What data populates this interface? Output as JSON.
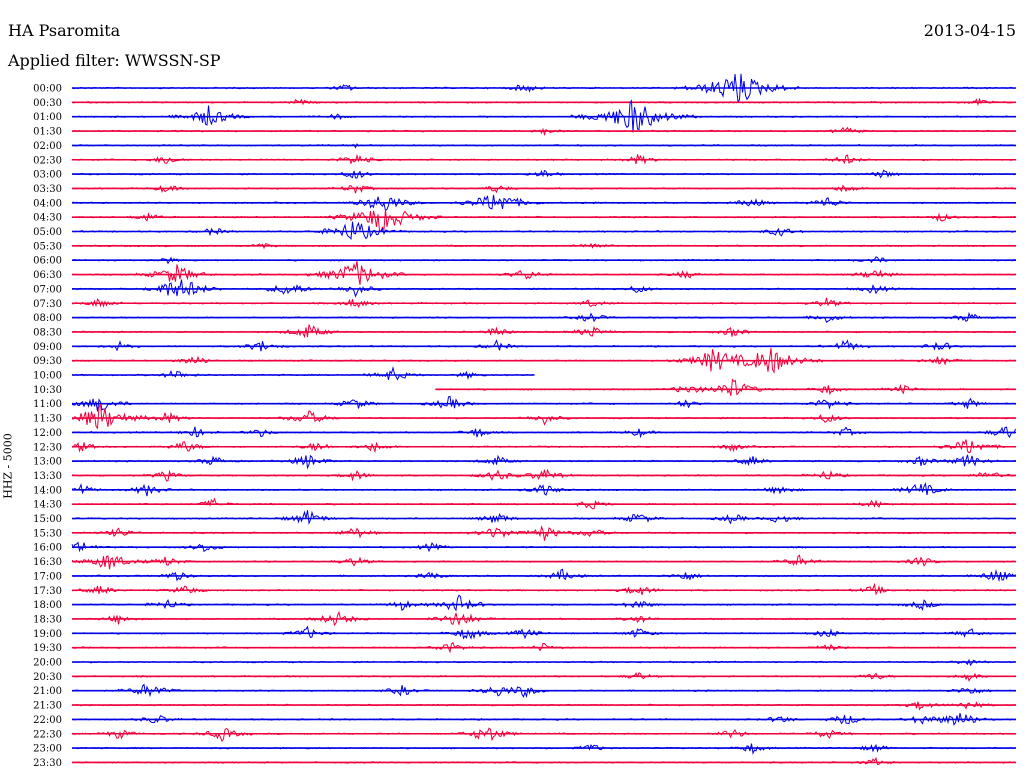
{
  "header": {
    "station": "HA Psaromita",
    "date": "2013-04-15",
    "filter": "Applied filter: WWSSN-SP"
  },
  "chart_data": {
    "type": "line",
    "title": "HA Psaromita",
    "subtitle": "Applied filter: WWSSN-SP",
    "ylabel": "HHZ - 5000",
    "colors": [
      "#0000e6",
      "#f0003c"
    ],
    "rows": [
      {
        "label": "00:00",
        "events": [
          [
            0.29,
            0.22
          ],
          [
            0.48,
            0.28
          ],
          [
            0.705,
            1.0
          ]
        ]
      },
      {
        "label": "00:30",
        "events": [
          [
            0.24,
            0.18
          ],
          [
            0.96,
            0.22
          ]
        ]
      },
      {
        "label": "01:00",
        "events": [
          [
            0.145,
            0.6
          ],
          [
            0.595,
            1.0
          ],
          [
            0.28,
            0.18
          ]
        ]
      },
      {
        "label": "01:30",
        "events": [
          [
            0.5,
            0.2
          ],
          [
            0.82,
            0.25
          ]
        ]
      },
      {
        "label": "02:00",
        "events": [
          [
            0.3,
            0.12
          ]
        ]
      },
      {
        "label": "02:30",
        "events": [
          [
            0.1,
            0.3
          ],
          [
            0.3,
            0.35
          ],
          [
            0.6,
            0.3
          ],
          [
            0.82,
            0.3
          ]
        ]
      },
      {
        "label": "03:00",
        "events": [
          [
            0.3,
            0.3
          ],
          [
            0.5,
            0.25
          ],
          [
            0.86,
            0.25
          ]
        ]
      },
      {
        "label": "03:30",
        "events": [
          [
            0.1,
            0.25
          ],
          [
            0.3,
            0.3
          ],
          [
            0.45,
            0.25
          ],
          [
            0.82,
            0.25
          ]
        ]
      },
      {
        "label": "04:00",
        "events": [
          [
            0.33,
            0.6
          ],
          [
            0.45,
            0.7
          ],
          [
            0.72,
            0.3
          ],
          [
            0.8,
            0.35
          ]
        ]
      },
      {
        "label": "04:30",
        "events": [
          [
            0.33,
            0.9
          ],
          [
            0.08,
            0.25
          ],
          [
            0.92,
            0.25
          ]
        ]
      },
      {
        "label": "05:00",
        "events": [
          [
            0.3,
            0.7
          ],
          [
            0.15,
            0.25
          ],
          [
            0.75,
            0.3
          ]
        ]
      },
      {
        "label": "05:30",
        "events": [
          [
            0.55,
            0.25
          ],
          [
            0.2,
            0.2
          ]
        ]
      },
      {
        "label": "06:00",
        "events": [
          [
            0.1,
            0.2
          ],
          [
            0.85,
            0.25
          ]
        ]
      },
      {
        "label": "06:30",
        "events": [
          [
            0.11,
            0.6
          ],
          [
            0.3,
            0.8
          ],
          [
            0.48,
            0.35
          ],
          [
            0.65,
            0.25
          ],
          [
            0.85,
            0.35
          ]
        ]
      },
      {
        "label": "07:00",
        "events": [
          [
            0.1,
            0.3
          ],
          [
            0.12,
            0.6
          ],
          [
            0.23,
            0.45
          ],
          [
            0.3,
            0.4
          ],
          [
            0.6,
            0.25
          ],
          [
            0.85,
            0.3
          ]
        ]
      },
      {
        "label": "07:30",
        "events": [
          [
            0.03,
            0.3
          ],
          [
            0.3,
            0.3
          ],
          [
            0.55,
            0.25
          ],
          [
            0.8,
            0.3
          ]
        ]
      },
      {
        "label": "08:00",
        "events": [
          [
            0.55,
            0.3
          ],
          [
            0.8,
            0.3
          ],
          [
            0.95,
            0.3
          ]
        ]
      },
      {
        "label": "08:30",
        "events": [
          [
            0.25,
            0.45
          ],
          [
            0.45,
            0.3
          ],
          [
            0.55,
            0.35
          ],
          [
            0.7,
            0.3
          ]
        ]
      },
      {
        "label": "09:00",
        "events": [
          [
            0.05,
            0.25
          ],
          [
            0.2,
            0.35
          ],
          [
            0.45,
            0.3
          ],
          [
            0.82,
            0.35
          ],
          [
            0.92,
            0.3
          ]
        ]
      },
      {
        "label": "09:30",
        "events": [
          [
            0.13,
            0.3
          ],
          [
            0.68,
            0.7
          ],
          [
            0.74,
            0.8
          ],
          [
            0.92,
            0.3
          ]
        ]
      },
      {
        "label": "10:00",
        "events": [
          [
            0.11,
            0.3
          ],
          [
            0.34,
            0.4
          ],
          [
            0.42,
            0.2
          ]
        ],
        "end": 0.49
      },
      {
        "label": "10:30",
        "start": 0.385,
        "events": [
          [
            0.65,
            0.3
          ],
          [
            0.7,
            0.6
          ],
          [
            0.8,
            0.3
          ],
          [
            0.88,
            0.25
          ]
        ]
      },
      {
        "label": "11:00",
        "events": [
          [
            0.03,
            0.5
          ],
          [
            0.3,
            0.35
          ],
          [
            0.4,
            0.4
          ],
          [
            0.65,
            0.25
          ],
          [
            0.8,
            0.35
          ],
          [
            0.95,
            0.3
          ]
        ]
      },
      {
        "label": "11:30",
        "events": [
          [
            0.03,
            0.8
          ],
          [
            0.1,
            0.35
          ],
          [
            0.25,
            0.45
          ],
          [
            0.5,
            0.35
          ],
          [
            0.8,
            0.3
          ]
        ]
      },
      {
        "label": "12:00",
        "events": [
          [
            0.13,
            0.3
          ],
          [
            0.2,
            0.25
          ],
          [
            0.43,
            0.3
          ],
          [
            0.6,
            0.25
          ],
          [
            0.82,
            0.25
          ],
          [
            0.99,
            0.4
          ]
        ]
      },
      {
        "label": "12:30",
        "events": [
          [
            0.01,
            0.3
          ],
          [
            0.12,
            0.35
          ],
          [
            0.26,
            0.3
          ],
          [
            0.32,
            0.3
          ],
          [
            0.7,
            0.25
          ],
          [
            0.95,
            0.5
          ]
        ]
      },
      {
        "label": "13:00",
        "events": [
          [
            0.15,
            0.3
          ],
          [
            0.25,
            0.4
          ],
          [
            0.45,
            0.3
          ],
          [
            0.72,
            0.3
          ],
          [
            0.9,
            0.3
          ],
          [
            0.95,
            0.4
          ]
        ]
      },
      {
        "label": "13:30",
        "events": [
          [
            0.1,
            0.3
          ],
          [
            0.3,
            0.3
          ],
          [
            0.45,
            0.35
          ],
          [
            0.5,
            0.4
          ],
          [
            0.8,
            0.3
          ],
          [
            0.97,
            0.3
          ]
        ]
      },
      {
        "label": "14:00",
        "events": [
          [
            0.01,
            0.3
          ],
          [
            0.08,
            0.35
          ],
          [
            0.5,
            0.35
          ],
          [
            0.75,
            0.3
          ],
          [
            0.9,
            0.45
          ]
        ]
      },
      {
        "label": "14:30",
        "events": [
          [
            0.15,
            0.3
          ],
          [
            0.55,
            0.3
          ],
          [
            0.85,
            0.25
          ]
        ]
      },
      {
        "label": "15:00",
        "events": [
          [
            0.25,
            0.45
          ],
          [
            0.45,
            0.35
          ],
          [
            0.6,
            0.35
          ],
          [
            0.7,
            0.3
          ],
          [
            0.75,
            0.3
          ]
        ]
      },
      {
        "label": "15:30",
        "events": [
          [
            0.05,
            0.3
          ],
          [
            0.3,
            0.35
          ],
          [
            0.45,
            0.4
          ],
          [
            0.5,
            0.45
          ],
          [
            0.55,
            0.3
          ]
        ]
      },
      {
        "label": "16:00",
        "events": [
          [
            0.01,
            0.35
          ],
          [
            0.14,
            0.3
          ],
          [
            0.38,
            0.25
          ]
        ]
      },
      {
        "label": "16:30",
        "events": [
          [
            0.04,
            0.55
          ],
          [
            0.1,
            0.3
          ],
          [
            0.3,
            0.3
          ],
          [
            0.77,
            0.35
          ],
          [
            0.9,
            0.3
          ]
        ]
      },
      {
        "label": "17:00",
        "events": [
          [
            0.11,
            0.3
          ],
          [
            0.38,
            0.25
          ],
          [
            0.52,
            0.35
          ],
          [
            0.65,
            0.3
          ],
          [
            0.98,
            0.4
          ]
        ]
      },
      {
        "label": "17:30",
        "events": [
          [
            0.03,
            0.3
          ],
          [
            0.12,
            0.3
          ],
          [
            0.6,
            0.35
          ],
          [
            0.85,
            0.3
          ]
        ]
      },
      {
        "label": "18:00",
        "events": [
          [
            0.1,
            0.3
          ],
          [
            0.35,
            0.3
          ],
          [
            0.41,
            0.5
          ],
          [
            0.6,
            0.3
          ],
          [
            0.9,
            0.3
          ]
        ]
      },
      {
        "label": "18:30",
        "events": [
          [
            0.05,
            0.3
          ],
          [
            0.28,
            0.45
          ],
          [
            0.41,
            0.5
          ],
          [
            0.6,
            0.25
          ]
        ]
      },
      {
        "label": "19:00",
        "events": [
          [
            0.25,
            0.35
          ],
          [
            0.42,
            0.4
          ],
          [
            0.48,
            0.3
          ],
          [
            0.6,
            0.3
          ],
          [
            0.8,
            0.3
          ],
          [
            0.95,
            0.3
          ]
        ]
      },
      {
        "label": "19:30",
        "events": [
          [
            0.4,
            0.35
          ],
          [
            0.5,
            0.25
          ],
          [
            0.8,
            0.25
          ]
        ]
      },
      {
        "label": "20:00",
        "events": [
          [
            0.95,
            0.2
          ]
        ]
      },
      {
        "label": "20:30",
        "events": [
          [
            0.6,
            0.25
          ],
          [
            0.85,
            0.25
          ],
          [
            0.95,
            0.25
          ]
        ]
      },
      {
        "label": "21:00",
        "events": [
          [
            0.08,
            0.45
          ],
          [
            0.35,
            0.3
          ],
          [
            0.45,
            0.35
          ],
          [
            0.48,
            0.35
          ],
          [
            0.95,
            0.3
          ]
        ]
      },
      {
        "label": "21:30",
        "events": [
          [
            0.9,
            0.3
          ],
          [
            0.95,
            0.3
          ]
        ]
      },
      {
        "label": "22:00",
        "events": [
          [
            0.09,
            0.3
          ],
          [
            0.75,
            0.25
          ],
          [
            0.82,
            0.35
          ],
          [
            0.9,
            0.3
          ],
          [
            0.94,
            0.5
          ]
        ]
      },
      {
        "label": "22:30",
        "events": [
          [
            0.05,
            0.3
          ],
          [
            0.16,
            0.4
          ],
          [
            0.44,
            0.5
          ],
          [
            0.7,
            0.3
          ],
          [
            0.8,
            0.3
          ]
        ]
      },
      {
        "label": "23:00",
        "events": [
          [
            0.55,
            0.25
          ],
          [
            0.72,
            0.3
          ],
          [
            0.85,
            0.25
          ]
        ]
      },
      {
        "label": "23:30",
        "events": [
          [
            0.85,
            0.25
          ]
        ]
      }
    ]
  }
}
